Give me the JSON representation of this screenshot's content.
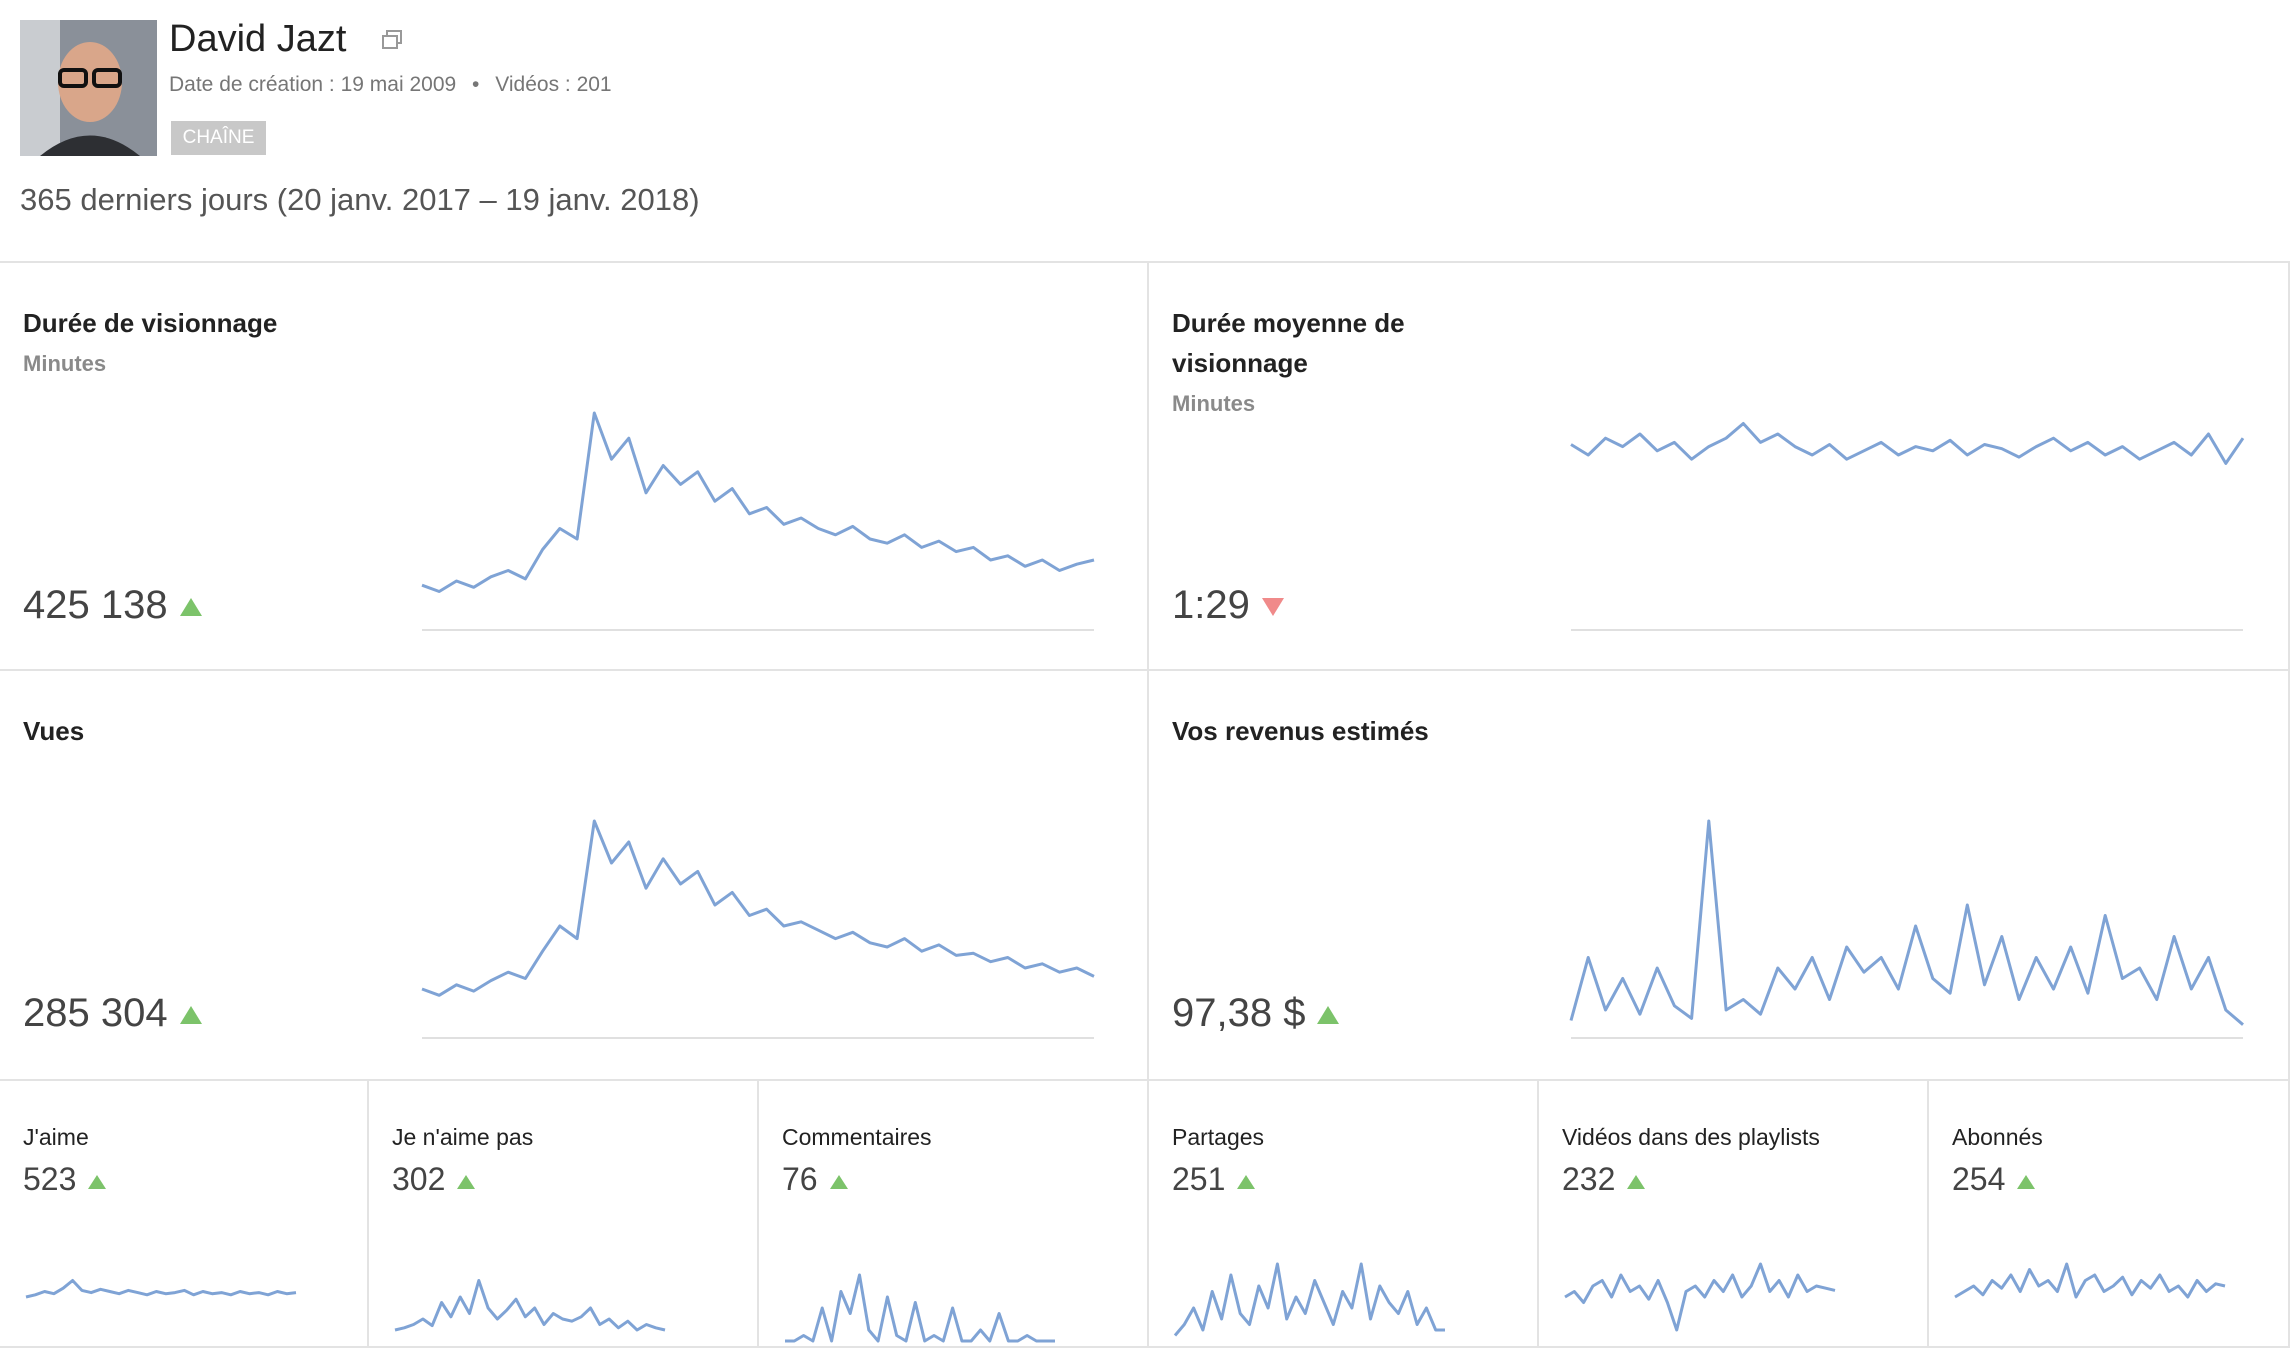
{
  "header": {
    "name": "David Jazt",
    "created": "Date de création : 19 mai 2009",
    "videos": "Vidéos : 201",
    "badge": "CHAÎNE",
    "period": "365 derniers jours (20 janv. 2017 – 19 janv. 2018)"
  },
  "spark_color": "#7fa3d5",
  "trend_colors": {
    "up": "#7cc36a",
    "down": "#f08a8a"
  },
  "cards": [
    {
      "size": "big",
      "title": "Durée de visionnage",
      "unit": "Minutes",
      "value": "425 138",
      "trend": "up",
      "spark": [
        18,
        15,
        20,
        17,
        22,
        25,
        21,
        35,
        45,
        40,
        100,
        78,
        88,
        62,
        75,
        66,
        72,
        58,
        64,
        52,
        55,
        47,
        50,
        45,
        42,
        46,
        40,
        38,
        42,
        36,
        39,
        34,
        36,
        30,
        32,
        27,
        30,
        25,
        28,
        30
      ]
    },
    {
      "size": "big",
      "title": "Durée moyenne de visionnage",
      "unit": "Minutes",
      "value": "1:29",
      "trend": "down",
      "spark": [
        85,
        80,
        88,
        84,
        90,
        82,
        86,
        78,
        84,
        88,
        95,
        86,
        90,
        84,
        80,
        85,
        78,
        82,
        86,
        80,
        84,
        82,
        87,
        80,
        85,
        83,
        79,
        84,
        88,
        82,
        86,
        80,
        84,
        78,
        82,
        86,
        80,
        90,
        76,
        88
      ]
    },
    {
      "size": "big",
      "title": "Vues",
      "value": "285 304",
      "trend": "up",
      "spark": [
        20,
        17,
        22,
        19,
        24,
        28,
        25,
        38,
        50,
        44,
        100,
        80,
        90,
        68,
        82,
        70,
        76,
        60,
        66,
        55,
        58,
        50,
        52,
        48,
        44,
        47,
        42,
        40,
        44,
        38,
        41,
        36,
        37,
        33,
        35,
        30,
        32,
        28,
        30,
        26
      ]
    },
    {
      "size": "big",
      "title": "Vos revenus estimés",
      "value": "97,38 $",
      "trend": "up",
      "spark": [
        5,
        35,
        10,
        25,
        8,
        30,
        12,
        6,
        100,
        10,
        15,
        8,
        30,
        20,
        35,
        15,
        40,
        28,
        35,
        20,
        50,
        25,
        18,
        60,
        22,
        45,
        15,
        35,
        20,
        40,
        18,
        55,
        25,
        30,
        15,
        45,
        20,
        35,
        10,
        3
      ]
    },
    {
      "size": "small",
      "title": "J'aime",
      "value": "523",
      "trend": "up",
      "spark": [
        40,
        42,
        45,
        43,
        48,
        55,
        46,
        44,
        47,
        45,
        43,
        46,
        44,
        42,
        45,
        43,
        44,
        46,
        42,
        45,
        43,
        44,
        42,
        45,
        43,
        44,
        42,
        45,
        43,
        44
      ]
    },
    {
      "size": "small",
      "title": "Je n'aime pas",
      "value": "302",
      "trend": "up",
      "spark": [
        10,
        12,
        15,
        20,
        14,
        35,
        22,
        40,
        25,
        55,
        30,
        20,
        28,
        38,
        22,
        30,
        15,
        25,
        20,
        18,
        22,
        30,
        15,
        20,
        12,
        18,
        10,
        15,
        12,
        10
      ]
    },
    {
      "size": "small",
      "title": "Commentaires",
      "value": "76",
      "trend": "up",
      "spark": [
        0,
        0,
        5,
        0,
        30,
        0,
        45,
        25,
        60,
        10,
        0,
        40,
        5,
        0,
        35,
        0,
        5,
        0,
        30,
        0,
        0,
        10,
        0,
        25,
        0,
        0,
        5,
        0,
        0,
        0
      ]
    },
    {
      "size": "small",
      "title": "Partages",
      "value": "251",
      "trend": "up",
      "spark": [
        5,
        15,
        30,
        10,
        45,
        20,
        60,
        25,
        15,
        50,
        30,
        70,
        20,
        40,
        25,
        55,
        35,
        15,
        45,
        30,
        70,
        20,
        50,
        35,
        25,
        45,
        15,
        30,
        10,
        10
      ]
    },
    {
      "size": "small",
      "title": "Vidéos dans des playlists",
      "value": "232",
      "trend": "up",
      "spark": [
        40,
        45,
        35,
        50,
        55,
        40,
        60,
        45,
        50,
        38,
        55,
        35,
        10,
        45,
        50,
        40,
        55,
        45,
        60,
        40,
        50,
        70,
        45,
        55,
        40,
        60,
        45,
        50,
        48,
        46
      ]
    },
    {
      "size": "small",
      "title": "Abonnés",
      "value": "254",
      "trend": "up",
      "spark": [
        40,
        45,
        50,
        42,
        55,
        48,
        60,
        45,
        65,
        50,
        55,
        45,
        70,
        40,
        55,
        60,
        45,
        50,
        58,
        42,
        55,
        48,
        60,
        45,
        50,
        40,
        55,
        45,
        52,
        50
      ]
    }
  ]
}
